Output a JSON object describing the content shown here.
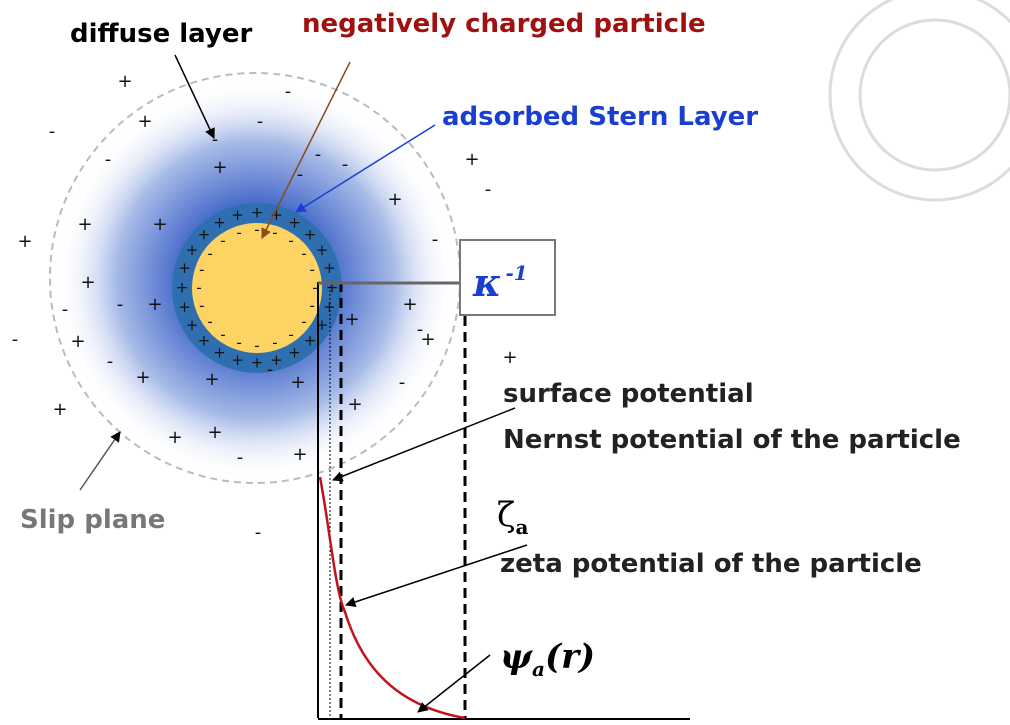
{
  "labels": {
    "diffuse_layer": "diffuse layer",
    "particle": "negatively charged particle",
    "stern": "adsorbed Stern Layer",
    "slip_plane": "Slip plane",
    "surface_potential": "surface potential",
    "nernst": "Nernst potential of the particle",
    "zeta_symbol": "ζ",
    "zeta_subscript": "a",
    "zeta": "zeta potential of the particle",
    "psi_symbol": "ψ",
    "psi_subscript": "a",
    "psi_arg": "(r)",
    "kappa": "κ",
    "kappa_exp": "-1"
  },
  "outer_charges": [
    "+",
    "-",
    "+",
    "-",
    "-",
    "+",
    "-",
    "-",
    "-",
    "-",
    "+",
    "-",
    "-",
    "+",
    "+",
    "+",
    "+",
    "-",
    "+",
    "-",
    "+",
    "-",
    "+",
    "+",
    "-",
    "-",
    "+",
    "+",
    "-",
    "+",
    "+",
    "+",
    "-",
    "+",
    "-",
    "+",
    "+",
    "+",
    "+",
    "-",
    "+",
    "-"
  ],
  "stern_charges": [
    "+",
    "+",
    "+",
    "+",
    "+",
    "+",
    "+",
    "+",
    "+",
    "+",
    "+",
    "+",
    "+",
    "+",
    "+",
    "+",
    "+",
    "+",
    "+",
    "+",
    "+",
    "+",
    "+",
    "+"
  ],
  "surface_charges": [
    "-",
    "-",
    "-",
    "-",
    "-",
    "-",
    "-",
    "-",
    "-",
    "-",
    "-",
    "-",
    "-",
    "-",
    "-",
    "-",
    "-",
    "-",
    "-",
    "-"
  ]
}
